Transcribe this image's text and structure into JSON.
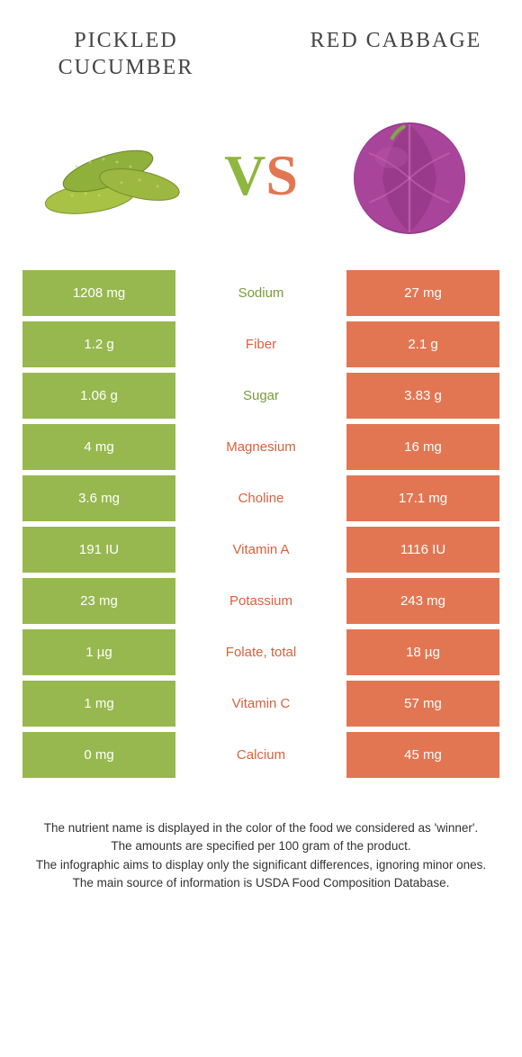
{
  "header": {
    "left_title": "PICKLED CUCUMBER",
    "right_title": "RED CABBAGE"
  },
  "vs": {
    "v": "V",
    "s": "S"
  },
  "colors": {
    "left_bg": "#97b84e",
    "right_bg": "#e37652",
    "mid_green": "#7a9c3a",
    "mid_orange": "#d8623d"
  },
  "rows": [
    {
      "left": "1208 mg",
      "label": "Sodium",
      "winner": "left",
      "right": "27 mg"
    },
    {
      "left": "1.2 g",
      "label": "Fiber",
      "winner": "right",
      "right": "2.1 g"
    },
    {
      "left": "1.06 g",
      "label": "Sugar",
      "winner": "left",
      "right": "3.83 g"
    },
    {
      "left": "4 mg",
      "label": "Magnesium",
      "winner": "right",
      "right": "16 mg"
    },
    {
      "left": "3.6 mg",
      "label": "Choline",
      "winner": "right",
      "right": "17.1 mg"
    },
    {
      "left": "191 IU",
      "label": "Vitamin A",
      "winner": "right",
      "right": "1116 IU"
    },
    {
      "left": "23 mg",
      "label": "Potassium",
      "winner": "right",
      "right": "243 mg"
    },
    {
      "left": "1 µg",
      "label": "Folate, total",
      "winner": "right",
      "right": "18 µg"
    },
    {
      "left": "1 mg",
      "label": "Vitamin C",
      "winner": "right",
      "right": "57 mg"
    },
    {
      "left": "0 mg",
      "label": "Calcium",
      "winner": "right",
      "right": "45 mg"
    }
  ],
  "footer": {
    "line1": "The nutrient name is displayed in the color of the food we considered as 'winner'.",
    "line2": "The amounts are specified per 100 gram of the product.",
    "line3": "The infographic aims to display only the significant differences, ignoring minor ones.",
    "line4": "The main source of information is USDA Food Composition Database."
  }
}
